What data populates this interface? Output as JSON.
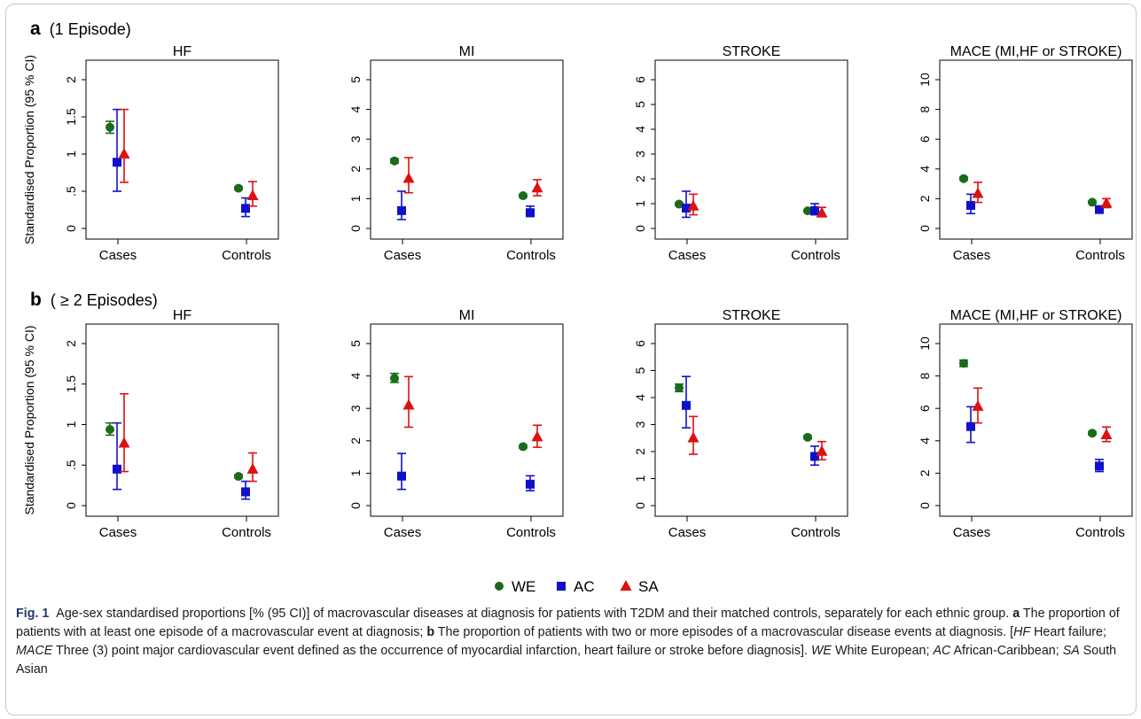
{
  "panels": [
    {
      "letter": "a",
      "label": "(1 Episode)"
    },
    {
      "letter": "b",
      "label": "( ≥ 2 Episodes)"
    }
  ],
  "ylabel": "Standardised Proportion (95 % CI)",
  "legend": [
    {
      "name": "WE",
      "color": "#1a6b1a",
      "marker": "circle"
    },
    {
      "name": "AC",
      "color": "#1010cc",
      "marker": "square"
    },
    {
      "name": "SA",
      "color": "#dd1111",
      "marker": "triangle"
    }
  ],
  "chart_data": [
    {
      "type": "scatter",
      "panel": "a",
      "title": "HF",
      "categories": [
        "Cases",
        "Controls"
      ],
      "yticks": [
        0,
        0.5,
        1,
        1.5,
        2
      ],
      "ytick_labels": [
        "0",
        ".5",
        "1",
        "1.5",
        "2"
      ],
      "ylim": [
        0,
        2
      ],
      "series": [
        {
          "name": "WE",
          "values": [
            1.36,
            0.54
          ],
          "ci": [
            [
              1.28,
              1.44
            ],
            [
              0.52,
              0.56
            ]
          ]
        },
        {
          "name": "AC",
          "values": [
            0.89,
            0.27
          ],
          "ci": [
            [
              0.5,
              1.6
            ],
            [
              0.16,
              0.41
            ]
          ]
        },
        {
          "name": "SA",
          "values": [
            1.0,
            0.44
          ],
          "ci": [
            [
              0.62,
              1.6
            ],
            [
              0.3,
              0.63
            ]
          ]
        }
      ]
    },
    {
      "type": "scatter",
      "panel": "a",
      "title": "MI",
      "categories": [
        "Cases",
        "Controls"
      ],
      "yticks": [
        0,
        1,
        2,
        3,
        4,
        5
      ],
      "ytick_labels": [
        "0",
        "1",
        "2",
        "3",
        "4",
        "5"
      ],
      "ylim": [
        0,
        5
      ],
      "series": [
        {
          "name": "WE",
          "values": [
            2.27,
            1.1
          ],
          "ci": [
            [
              2.2,
              2.34
            ],
            [
              1.06,
              1.14
            ]
          ]
        },
        {
          "name": "AC",
          "values": [
            0.6,
            0.53
          ],
          "ci": [
            [
              0.3,
              1.25
            ],
            [
              0.4,
              0.75
            ]
          ]
        },
        {
          "name": "SA",
          "values": [
            1.68,
            1.36
          ],
          "ci": [
            [
              1.2,
              2.38
            ],
            [
              1.1,
              1.64
            ]
          ]
        }
      ]
    },
    {
      "type": "scatter",
      "panel": "a",
      "title": "STROKE",
      "categories": [
        "Cases",
        "Controls"
      ],
      "yticks": [
        0,
        1,
        2,
        3,
        4,
        5,
        6
      ],
      "ytick_labels": [
        "0",
        "1",
        "2",
        "3",
        "4",
        "5",
        "6"
      ],
      "ylim": [
        0,
        6
      ],
      "series": [
        {
          "name": "WE",
          "values": [
            0.98,
            0.71
          ],
          "ci": [
            [
              0.93,
              1.03
            ],
            [
              0.68,
              0.74
            ]
          ]
        },
        {
          "name": "AC",
          "values": [
            0.82,
            0.72
          ],
          "ci": [
            [
              0.45,
              1.5
            ],
            [
              0.55,
              1.0
            ]
          ]
        },
        {
          "name": "SA",
          "values": [
            0.9,
            0.62
          ],
          "ci": [
            [
              0.55,
              1.38
            ],
            [
              0.5,
              0.85
            ]
          ]
        }
      ]
    },
    {
      "type": "scatter",
      "panel": "a",
      "title": "MACE (MI,HF or STROKE)",
      "categories": [
        "Cases",
        "Controls"
      ],
      "yticks": [
        0,
        2,
        4,
        6,
        8,
        10
      ],
      "ytick_labels": [
        "0",
        "2",
        "4",
        "6",
        "8",
        "10"
      ],
      "ylim": [
        0,
        10
      ],
      "series": [
        {
          "name": "WE",
          "values": [
            3.35,
            1.76
          ],
          "ci": [
            [
              3.25,
              3.45
            ],
            [
              1.7,
              1.82
            ]
          ]
        },
        {
          "name": "AC",
          "values": [
            1.55,
            1.27
          ],
          "ci": [
            [
              1.0,
              2.3
            ],
            [
              1.05,
              1.45
            ]
          ]
        },
        {
          "name": "SA",
          "values": [
            2.35,
            1.7
          ],
          "ci": [
            [
              1.75,
              3.1
            ],
            [
              1.4,
              2.0
            ]
          ]
        }
      ]
    },
    {
      "type": "scatter",
      "panel": "b",
      "title": "HF",
      "categories": [
        "Cases",
        "Controls"
      ],
      "yticks": [
        0,
        0.5,
        1,
        1.5,
        2
      ],
      "ytick_labels": [
        "0",
        ".5",
        "1",
        "1.5",
        "2"
      ],
      "ylim": [
        0,
        2
      ],
      "series": [
        {
          "name": "WE",
          "values": [
            0.94,
            0.36
          ],
          "ci": [
            [
              0.87,
              1.02
            ],
            [
              0.34,
              0.38
            ]
          ]
        },
        {
          "name": "AC",
          "values": [
            0.45,
            0.17
          ],
          "ci": [
            [
              0.2,
              1.02
            ],
            [
              0.08,
              0.3
            ]
          ]
        },
        {
          "name": "SA",
          "values": [
            0.77,
            0.45
          ],
          "ci": [
            [
              0.42,
              1.38
            ],
            [
              0.3,
              0.65
            ]
          ]
        }
      ]
    },
    {
      "type": "scatter",
      "panel": "b",
      "title": "MI",
      "categories": [
        "Cases",
        "Controls"
      ],
      "yticks": [
        0,
        1,
        2,
        3,
        4,
        5
      ],
      "ytick_labels": [
        "0",
        "1",
        "2",
        "3",
        "4",
        "5"
      ],
      "ylim": [
        0,
        5
      ],
      "series": [
        {
          "name": "WE",
          "values": [
            3.93,
            1.82
          ],
          "ci": [
            [
              3.8,
              4.08
            ],
            [
              1.78,
              1.86
            ]
          ]
        },
        {
          "name": "AC",
          "values": [
            0.91,
            0.66
          ],
          "ci": [
            [
              0.5,
              1.61
            ],
            [
              0.46,
              0.92
            ]
          ]
        },
        {
          "name": "SA",
          "values": [
            3.1,
            2.12
          ],
          "ci": [
            [
              2.42,
              3.98
            ],
            [
              1.8,
              2.48
            ]
          ]
        }
      ]
    },
    {
      "type": "scatter",
      "panel": "b",
      "title": "STROKE",
      "categories": [
        "Cases",
        "Controls"
      ],
      "yticks": [
        0,
        1,
        2,
        3,
        4,
        5,
        6
      ],
      "ytick_labels": [
        "0",
        "1",
        "2",
        "3",
        "4",
        "5",
        "6"
      ],
      "ylim": [
        0,
        6
      ],
      "series": [
        {
          "name": "WE",
          "values": [
            4.36,
            2.53
          ],
          "ci": [
            [
              4.22,
              4.5
            ],
            [
              2.48,
              2.58
            ]
          ]
        },
        {
          "name": "AC",
          "values": [
            3.71,
            1.82
          ],
          "ci": [
            [
              2.88,
              4.78
            ],
            [
              1.5,
              2.2
            ]
          ]
        },
        {
          "name": "SA",
          "values": [
            2.51,
            2.01
          ],
          "ci": [
            [
              1.9,
              3.3
            ],
            [
              1.7,
              2.37
            ]
          ]
        }
      ]
    },
    {
      "type": "scatter",
      "panel": "b",
      "title": "MACE (MI,HF or STROKE)",
      "categories": [
        "Cases",
        "Controls"
      ],
      "yticks": [
        0,
        2,
        4,
        6,
        8,
        10
      ],
      "ytick_labels": [
        "0",
        "2",
        "4",
        "6",
        "8",
        "10"
      ],
      "ylim": [
        0,
        10
      ],
      "series": [
        {
          "name": "WE",
          "values": [
            8.78,
            4.47
          ],
          "ci": [
            [
              8.58,
              8.98
            ],
            [
              4.39,
              4.55
            ]
          ]
        },
        {
          "name": "AC",
          "values": [
            4.88,
            2.44
          ],
          "ci": [
            [
              3.9,
              6.1
            ],
            [
              2.1,
              2.85
            ]
          ]
        },
        {
          "name": "SA",
          "values": [
            6.13,
            4.37
          ],
          "ci": [
            [
              5.1,
              7.25
            ],
            [
              3.95,
              4.85
            ]
          ]
        }
      ]
    }
  ],
  "caption": {
    "fig_label": "Fig. 1",
    "p1": "Age-sex standardised proportions [% (95 CI)] of macrovascular diseases at diagnosis for patients with T2DM and their matched controls, separately for each ethnic group.",
    "a_label": "a",
    "p2": "The proportion of patients with at least one episode of a macrovascular event at diagnosis;",
    "b_label": "b",
    "p3": "The proportion of patients with two or more episodes of a macrovascular disease events at diagnosis. [",
    "hf_abbr": "HF",
    "p4": "Heart failure;",
    "mace_abbr": "MACE",
    "p5": "Three (3) point major cardiovascular event defined as the occurrence of myocardial infarction, heart failure or stroke before diagnosis].",
    "we_abbr": "WE",
    "p6": "White European;",
    "ac_abbr": "AC",
    "p7": "African-Caribbean;",
    "sa_abbr": "SA",
    "p8": "South Asian"
  }
}
